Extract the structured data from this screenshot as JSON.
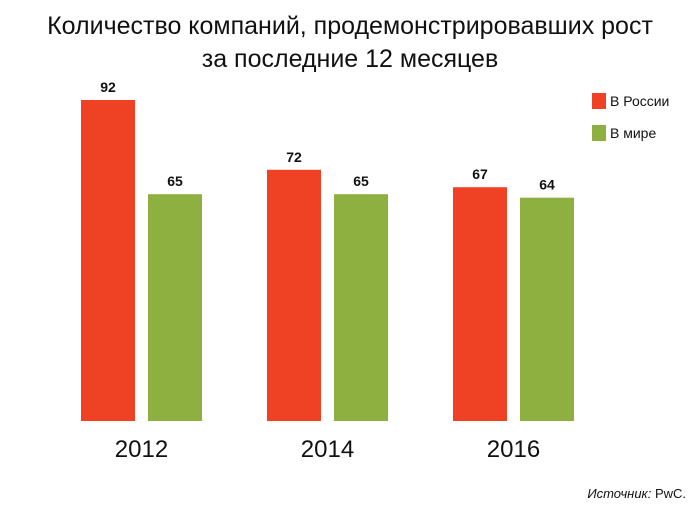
{
  "chart_data": {
    "type": "bar",
    "title_line1": "Количество компаний, продемонстрировавших рост",
    "title_line2": "за последние 12 месяцев",
    "categories": [
      "2012",
      "2014",
      "2016"
    ],
    "series": [
      {
        "name": "В России",
        "values": [
          92,
          72,
          67
        ],
        "color": "#ef4123"
      },
      {
        "name": "В мире",
        "values": [
          65,
          65,
          64
        ],
        "color": "#8db040"
      }
    ],
    "ylim": [
      0,
      92
    ],
    "grid": false,
    "legend_position": "top-right"
  },
  "source": {
    "label": "Источник:",
    "value": "PwC."
  }
}
